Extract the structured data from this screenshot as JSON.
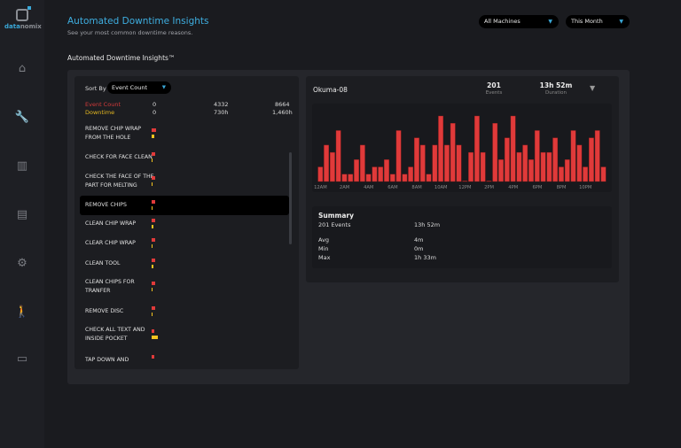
{
  "brand": {
    "name_a": "data",
    "name_b": "nomix"
  },
  "sidebar": {
    "items": [
      {
        "icon": "home-icon",
        "glyph": "⌂"
      },
      {
        "icon": "wrench-icon",
        "glyph": "🔧",
        "active": true
      },
      {
        "icon": "bar-chart-icon",
        "glyph": "▥"
      },
      {
        "icon": "clipboard-icon",
        "glyph": "▤"
      },
      {
        "icon": "gear-icon",
        "glyph": "⚙"
      },
      {
        "icon": "walking-person-icon",
        "glyph": "🚶"
      },
      {
        "icon": "monitor-icon",
        "glyph": "▭"
      }
    ]
  },
  "header": {
    "title": "Automated Downtime Insights",
    "subtitle": "See your most common downtime reasons.",
    "machine_filter": "All Machines",
    "period_filter": "This Month"
  },
  "section_title": "Automated Downtime Insights™",
  "left": {
    "sort_label": "Sort By",
    "sort_value": "Event Count",
    "scale": {
      "event_label": "Event Count",
      "event_ticks": [
        "0",
        "4332",
        "8664"
      ],
      "downtime_label": "Downtime",
      "downtime_ticks": [
        "0",
        "730h",
        "1,460h"
      ]
    },
    "event_max": 8664,
    "downtime_max_h": 1460,
    "reasons": [
      {
        "label": "REMOVE CHIP WRAP FROM THE HOLE",
        "events": 200,
        "downtime_h": 25
      },
      {
        "label": "CHECK FOR FACE CLEAN",
        "events": 190,
        "downtime_h": 8
      },
      {
        "label": "CHECK THE FACE OF THE PART FOR MELTING",
        "events": 185,
        "downtime_h": 8
      },
      {
        "label": "REMOVE CHIPS",
        "events": 180,
        "downtime_h": 8,
        "selected": true
      },
      {
        "label": "CLEAN CHIP WRAP",
        "events": 175,
        "downtime_h": 15
      },
      {
        "label": "CLEAR CHIP WRAP",
        "events": 170,
        "downtime_h": 10
      },
      {
        "label": "CLEAN TOOL",
        "events": 165,
        "downtime_h": 20
      },
      {
        "label": "CLEAN CHIPS FOR TRANFER",
        "events": 160,
        "downtime_h": 8
      },
      {
        "label": "REMOVE DISC",
        "events": 155,
        "downtime_h": 8
      },
      {
        "label": "CHECK ALL TEXT AND INSIDE POCKET",
        "events": 150,
        "downtime_h": 65
      },
      {
        "label": "TAP DOWN AND",
        "events": 145,
        "downtime_h": 0
      }
    ]
  },
  "detail": {
    "machine": "Okuma-08",
    "events_value": "201",
    "events_label": "Events",
    "duration_value": "13h 52m",
    "duration_label": "Duration",
    "summary": {
      "title": "Summary",
      "events": "201 Events",
      "total": "13h 52m",
      "rows": [
        {
          "k": "Avg",
          "v": "4m"
        },
        {
          "k": "Min",
          "v": "0m"
        },
        {
          "k": "Max",
          "v": "1h 33m"
        }
      ]
    }
  },
  "chart_data": {
    "type": "bar",
    "color": "#e03a3a",
    "x_tick_labels": [
      "12AM",
      "2AM",
      "4AM",
      "6AM",
      "8AM",
      "10AM",
      "12PM",
      "2PM",
      "4PM",
      "6PM",
      "8PM",
      "10PM"
    ],
    "interval": "30 min",
    "ylabel": "",
    "xlabel": "",
    "values": [
      2,
      5,
      4,
      7,
      1,
      1,
      3,
      5,
      1,
      2,
      2,
      3,
      1,
      7,
      1,
      2,
      6,
      5,
      1,
      5,
      9,
      5,
      8,
      5,
      0,
      4,
      9,
      4,
      0,
      8,
      3,
      6,
      9,
      4,
      5,
      3,
      7,
      4,
      4,
      6,
      2,
      3,
      7,
      5,
      2,
      6,
      7,
      2
    ],
    "ylim": [
      0,
      9
    ]
  },
  "colors": {
    "accent": "#3eaee0",
    "events": "#e03a3a",
    "downtime": "#f2c41f"
  }
}
